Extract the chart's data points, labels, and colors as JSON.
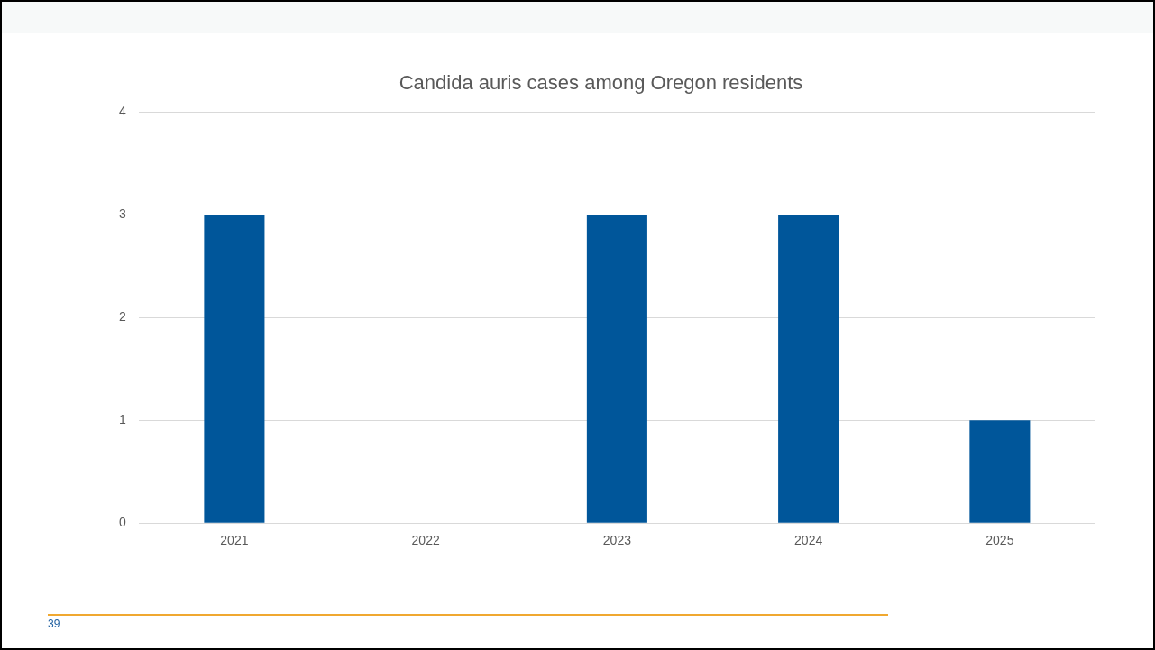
{
  "chart_data": {
    "type": "bar",
    "title": "Candida auris cases among Oregon residents",
    "categories": [
      "2021",
      "2022",
      "2023",
      "2024",
      "2025"
    ],
    "values": [
      3,
      0,
      3,
      3,
      1
    ],
    "color": "#00569a",
    "ylim": [
      0,
      4
    ],
    "yticks": [
      0,
      1,
      2,
      3,
      4
    ],
    "grid": "y",
    "annotations": [
      "39"
    ]
  }
}
